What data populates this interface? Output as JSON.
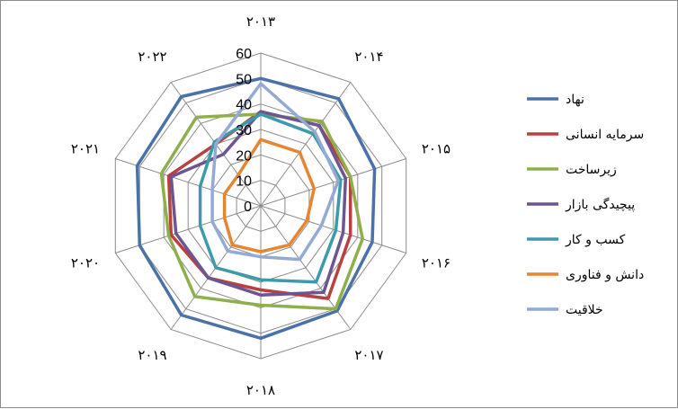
{
  "chart_data": {
    "type": "radar",
    "categories": [
      "۲۰۱۳",
      "۲۰۱۴",
      "۲۰۱۵",
      "۲۰۱۶",
      "۲۰۱۷",
      "۲۰۱۸",
      "۲۰۱۹",
      "۲۰۲۰",
      "۲۰۲۱",
      "۲۰۲۲"
    ],
    "ylim": [
      0,
      60
    ],
    "ticks": [
      "0",
      "10",
      "20",
      "30",
      "40",
      "50",
      "60"
    ],
    "grid": true,
    "legend_position": "right",
    "series": [
      {
        "name": "نهاد",
        "color": "#4a72a8",
        "values": [
          50,
          52,
          47,
          46,
          51,
          52,
          53,
          50,
          51,
          53
        ]
      },
      {
        "name": "سرمایه انسانی",
        "color": "#b8403f",
        "values": [
          37,
          39,
          37,
          37,
          45,
          33,
          35,
          37,
          38,
          30
        ]
      },
      {
        "name": "زیرساخت",
        "color": "#8fae4c",
        "values": [
          36,
          41,
          37,
          42,
          50,
          39,
          44,
          38,
          41,
          43
        ]
      },
      {
        "name": "پیچیدگی بازار",
        "color": "#6c5591",
        "values": [
          37,
          39,
          35,
          34,
          42,
          35,
          35,
          35,
          37,
          25
        ]
      },
      {
        "name": "کسب و کار",
        "color": "#3d9aab",
        "values": [
          36,
          35,
          33,
          31,
          37,
          29,
          30,
          25,
          25,
          31
        ]
      },
      {
        "name": "دانش و فناوری",
        "color": "#e68532",
        "values": [
          26,
          26,
          22,
          19,
          19,
          18,
          19,
          15,
          15,
          15
        ]
      },
      {
        "name": "خلاقیت",
        "color": "#93aad4",
        "values": [
          48,
          36,
          32,
          25,
          26,
          20,
          22,
          20,
          20,
          30
        ]
      }
    ]
  }
}
